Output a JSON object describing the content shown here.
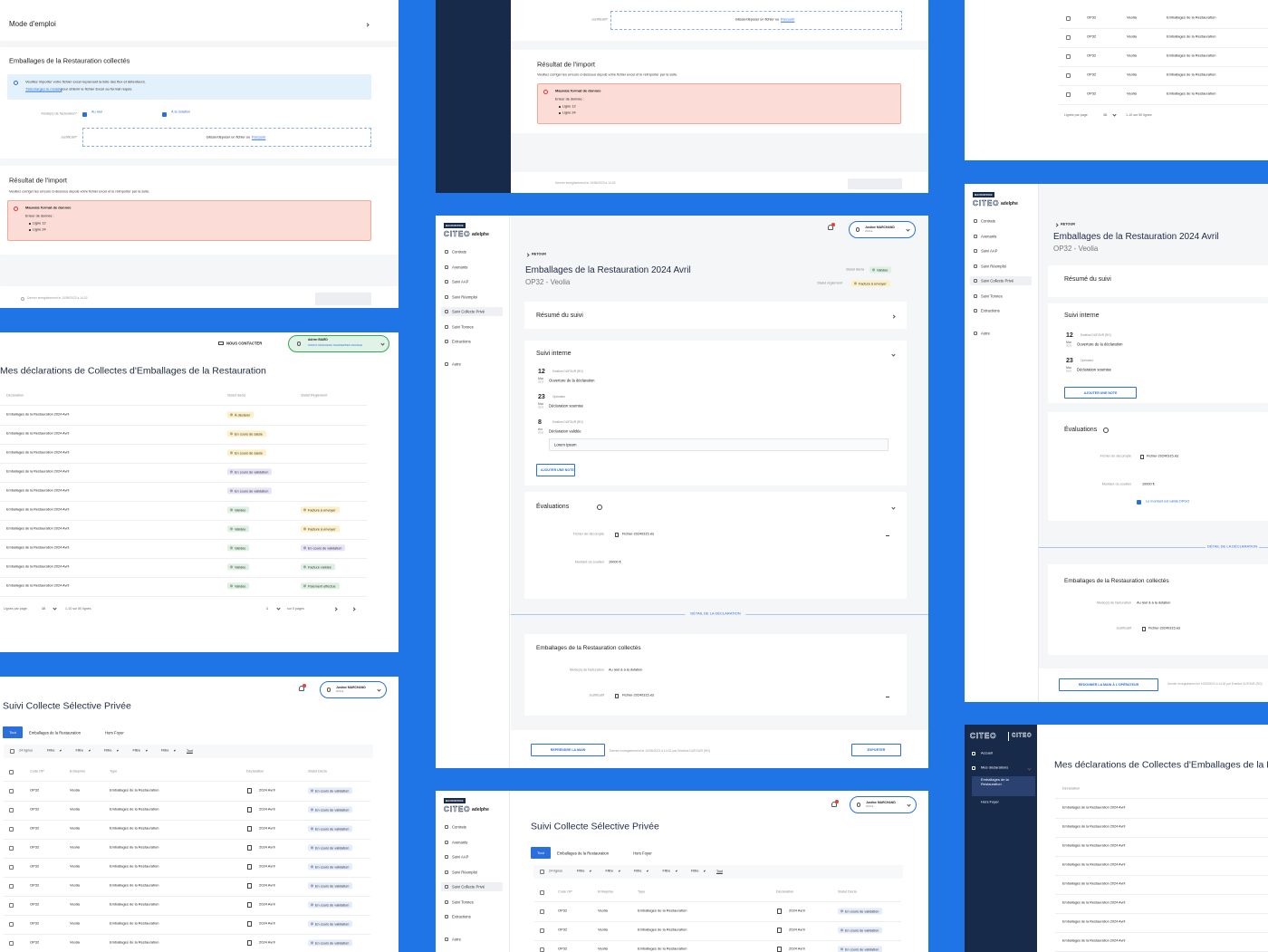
{
  "sidebar": {
    "badge": "BACKOFFICE",
    "logo": "CITEO",
    "partner": "adelphe",
    "items": [
      "Contrats",
      "Avenants",
      "Suivi AAP",
      "Suivi Réemploi",
      "Suivi Collecte Privé",
      "Suivi Tonnes",
      "Extractions",
      "Autre"
    ]
  },
  "nav_operator": {
    "items": [
      "Accueil",
      "Mes déclarations"
    ],
    "sub_items": [
      "Emballages de la Restauration",
      "Hors Foyer"
    ]
  },
  "user": {
    "name": "Justine MARCHAND",
    "org": "CCCL"
  },
  "import_form": {
    "mode_emploi": "Mode d'emploi",
    "section_title": "Emballages de la Restauration collectés",
    "info": "Veuillez importer votre fichier excel reprenant la liste des flux et détenteurs.",
    "info_link": "Téléchargez le modèle",
    "info_rest": "pour obtenir le fichier Excel au format requis.",
    "billing_label": "Mode(s) de facturation*",
    "option1": "Au réel",
    "option2": "À la dotation",
    "file_label": "Justificatif*",
    "drop_text": "Glisser/déposer un fichier ou",
    "drop_link": "Parcourir",
    "result_title": "Résultat de l'import",
    "result_text": "Veuillez corriger les erreurs ci-dessous depuis votre fichier excel et le réimporter par la suite.",
    "error_title": "Mauvais format de donnée",
    "error_sub": "Erreur de donnée :",
    "error_lines": [
      "Ligne 12",
      "Ligne 24"
    ],
    "footer": "Dernier enregistrement le 10/05/2023 à 14:32"
  },
  "declarations": {
    "contact": "NOUS CONTACTER",
    "user": {
      "name": "Adrien BIARD",
      "org": "SOFFO ORANGINA SCHWEPPES FRANCE"
    },
    "title": "Mes déclarations de Collectes d'Emballages de la Restauration",
    "columns": [
      "Déclaration",
      "Statut décla",
      "Statut Règlement"
    ],
    "rows": [
      {
        "declaration": "Emballages de la Restauration 2024 Avril",
        "status": {
          "label": "À déclarer",
          "color": "#fdf0c6"
        },
        "payment": null
      },
      {
        "declaration": "Emballages de la Restauration 2024 Avril",
        "status": {
          "label": "En cours de saisie",
          "color": "#fdf0c6"
        },
        "payment": null
      },
      {
        "declaration": "Emballages de la Restauration 2024 Avril",
        "status": {
          "label": "En cours de saisie",
          "color": "#fdf0c6"
        },
        "payment": null
      },
      {
        "declaration": "Emballages de la Restauration 2024 Avril",
        "status": {
          "label": "En cours de validation",
          "color": "#e7e4f8"
        },
        "payment": null
      },
      {
        "declaration": "Emballages de la Restauration 2024 Avril",
        "status": {
          "label": "En cours de validation",
          "color": "#e7e4f8"
        },
        "payment": null
      },
      {
        "declaration": "Emballages de la Restauration 2024 Avril",
        "status": {
          "label": "Validée",
          "color": "#dcf1e2"
        },
        "payment": {
          "label": "Facture à envoyer",
          "color": "#fdf0c6"
        }
      },
      {
        "declaration": "Emballages de la Restauration 2024 Avril",
        "status": {
          "label": "Validée",
          "color": "#dcf1e2"
        },
        "payment": {
          "label": "Facture à envoyer",
          "color": "#fdf0c6"
        }
      },
      {
        "declaration": "Emballages de la Restauration 2024 Avril",
        "status": {
          "label": "Validée",
          "color": "#dcf1e2"
        },
        "payment": {
          "label": "En cours de validation",
          "color": "#e7e4f8"
        }
      },
      {
        "declaration": "Emballages de la Restauration 2024 Avril",
        "status": {
          "label": "Validée",
          "color": "#dcf1e2"
        },
        "payment": {
          "label": "Facture validée",
          "color": "#dcf1e2"
        }
      },
      {
        "declaration": "Emballages de la Restauration 2024 Avril",
        "status": {
          "label": "Validée",
          "color": "#dcf1e2"
        },
        "payment": {
          "label": "Paiement effectué",
          "color": "#dcf1e2"
        }
      }
    ],
    "pagination": {
      "per_page_label": "Lignes par page",
      "per_page": 10,
      "range": "1-10 sur 50 lignes",
      "page": 1,
      "pages_label": "sur 5 pages"
    }
  },
  "tracking": {
    "title": "Suivi Collecte Sélective Privée",
    "tabs": [
      "Tout",
      "Emballages de la Restauration",
      "Hors Foyer"
    ],
    "count": "24 lignes",
    "filters": [
      "Filtre",
      "Filtre",
      "Filtre",
      "Filtre",
      "Filtre"
    ],
    "clear": "Tout",
    "columns": [
      "Code OP",
      "Entreprise",
      "Type",
      "Déclaration",
      "Statut Décla"
    ],
    "rows": [
      {
        "code": "OP32",
        "company": "Veolia",
        "type": "Emballages de la Restauration",
        "period": "2024 Avril",
        "status": {
          "label": "En cours de validation",
          "color": "#e4ecfb"
        }
      },
      {
        "code": "OP32",
        "company": "Veolia",
        "type": "Emballages de la Restauration",
        "period": "2024 Avril",
        "status": {
          "label": "En cours de validation",
          "color": "#e4ecfb"
        }
      },
      {
        "code": "OP32",
        "company": "Veolia",
        "type": "Emballages de la Restauration",
        "period": "2024 Avril",
        "status": {
          "label": "En cours de validation",
          "color": "#e4ecfb"
        }
      },
      {
        "code": "OP32",
        "company": "Veolia",
        "type": "Emballages de la Restauration",
        "period": "2024 Avril",
        "status": {
          "label": "En cours de validation",
          "color": "#e4ecfb"
        }
      },
      {
        "code": "OP32",
        "company": "Veolia",
        "type": "Emballages de la Restauration",
        "period": "2024 Avril",
        "status": {
          "label": "En cours de validation",
          "color": "#e4ecfb"
        }
      },
      {
        "code": "OP32",
        "company": "Veolia",
        "type": "Emballages de la Restauration",
        "period": "2024 Avril",
        "status": {
          "label": "En cours de validation",
          "color": "#e4ecfb"
        }
      },
      {
        "code": "OP32",
        "company": "Veolia",
        "type": "Emballages de la Restauration",
        "period": "2024 Avril",
        "status": {
          "label": "En cours de validation",
          "color": "#e4ecfb"
        }
      },
      {
        "code": "OP32",
        "company": "Veolia",
        "type": "Emballages de la Restauration",
        "period": "2024 Avril",
        "status": {
          "label": "En cours de validation",
          "color": "#e4ecfb"
        }
      },
      {
        "code": "OP32",
        "company": "Veolia",
        "type": "Emballages de la Restauration",
        "period": "2024 Avril",
        "status": {
          "label": "En cours de validation",
          "color": "#e4ecfb"
        }
      }
    ]
  },
  "detail": {
    "back": "RETOUR",
    "title": "Emballages de la Restauration 2024 Avril",
    "subtitle": "OP32 - Veolia",
    "status_label": "Statut décla",
    "status": {
      "label": "Validée",
      "color": "#dcf1e2"
    },
    "payment_label": "Statut règlement",
    "payment": {
      "label": "Facture à envoyer",
      "color": "#fdf0c6"
    },
    "summary": "Résumé du suivi",
    "internal": "Suivi interne",
    "timeline": [
      {
        "day": "12",
        "month": "Mar",
        "year": "2023",
        "author": "Emeline DUFOUR (RO)",
        "action": "Ouverture de la déclaration"
      },
      {
        "day": "23",
        "month": "Mar",
        "year": "2023",
        "author": "Opérateur",
        "action": "Déclaration soumise"
      },
      {
        "day": "8",
        "month": "Avr",
        "year": "2023",
        "author": "Emeline DUFOUR (RO)",
        "action": "Déclaration validée"
      }
    ],
    "note": "Lorem Ipsum",
    "add_note": "AJOUTER UNE NOTE",
    "evaluations": "Évaluations",
    "file_label": "Fichier de décompte",
    "file": "Fichier-20240315.xls",
    "amount_label": "Montant du soutien",
    "amount": "10000 €",
    "validated": "Le montant est validé DPGO",
    "section_header": "DÉTAIL DE LA DÉCLARATION",
    "collected_title": "Emballages de la Restauration collectés",
    "billing_label": "Mode(s) de facturation",
    "billing": "Au réel & à la dotation",
    "proof_label": "Justificatif",
    "take_back": "REPRENDRE LA MAIN",
    "footer": "Dernier enregistrement le 10/05/2023 à 14:32 par Emeline DUFOUR (RO)",
    "export": "EXPORTER",
    "hand_back": "REDONNER LA MAIN À L'OPÉRATEUR"
  }
}
